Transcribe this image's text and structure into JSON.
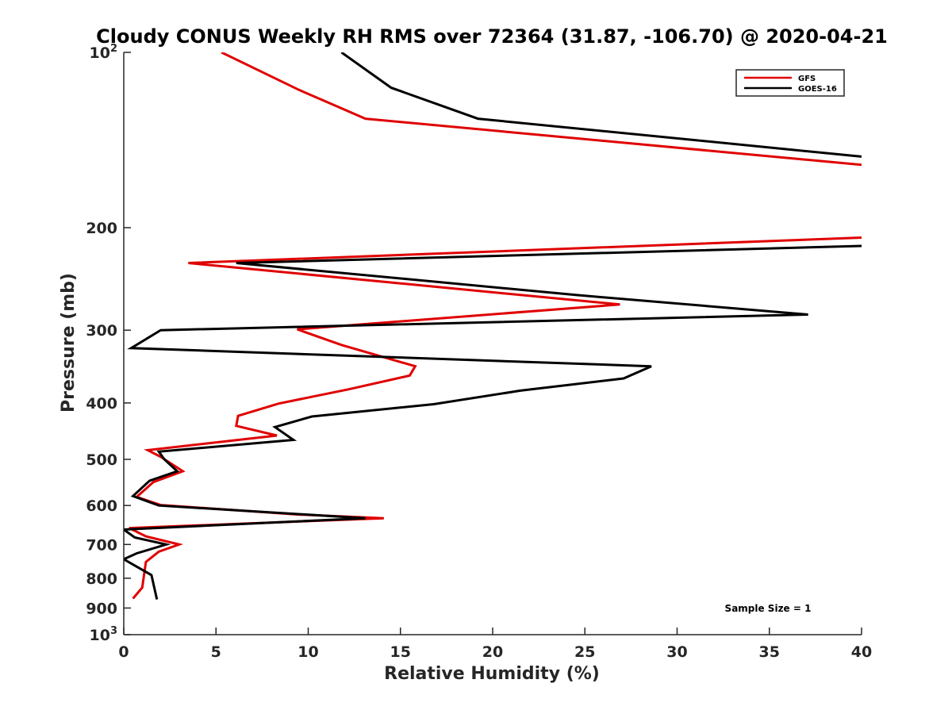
{
  "chart_data": {
    "type": "line",
    "title": "Cloudy CONUS Weekly RH RMS over 72364 (31.87, -106.70) @ 2020-04-21",
    "xlabel": "Relative Humidity (%)",
    "ylabel": "Pressure (mb)",
    "xlim": [
      0,
      40
    ],
    "ylim": [
      100,
      1000
    ],
    "y_scale": "log",
    "y_reversed": true,
    "grid": false,
    "legend_position": "top-right",
    "x_ticks": [
      0,
      5,
      10,
      15,
      20,
      25,
      30,
      35,
      40
    ],
    "y_ticks": [
      {
        "value": 100,
        "label": "10",
        "sup": "2"
      },
      {
        "value": 200,
        "label": "200",
        "sup": ""
      },
      {
        "value": 300,
        "label": "300",
        "sup": ""
      },
      {
        "value": 400,
        "label": "400",
        "sup": ""
      },
      {
        "value": 500,
        "label": "500",
        "sup": ""
      },
      {
        "value": 600,
        "label": "600",
        "sup": ""
      },
      {
        "value": 700,
        "label": "700",
        "sup": ""
      },
      {
        "value": 800,
        "label": "800",
        "sup": ""
      },
      {
        "value": 900,
        "label": "900",
        "sup": ""
      },
      {
        "value": 1000,
        "label": "10",
        "sup": "3"
      }
    ],
    "series": [
      {
        "name": "GFS",
        "color": "#e00000",
        "points": [
          [
            5.3,
            100
          ],
          [
            9.5,
            116
          ],
          [
            13.1,
            130
          ],
          [
            40,
            156
          ],
          [
            null,
            null
          ],
          [
            40,
            208
          ],
          [
            3.5,
            230
          ],
          [
            26.9,
            271
          ],
          [
            9.4,
            299
          ],
          [
            11.8,
            318
          ],
          [
            15.8,
            346
          ],
          [
            15.5,
            359
          ],
          [
            12.2,
            379
          ],
          [
            8.4,
            401
          ],
          [
            6.2,
            421
          ],
          [
            6.1,
            438
          ],
          [
            8.3,
            455
          ],
          [
            1.3,
            482
          ],
          [
            2.0,
            495
          ],
          [
            3.2,
            524
          ],
          [
            1.6,
            547
          ],
          [
            0.7,
            580
          ],
          [
            2.0,
            599
          ],
          [
            9.5,
            622
          ],
          [
            14.1,
            631
          ],
          [
            0.3,
            656
          ],
          [
            1.2,
            678
          ],
          [
            3.0,
            700
          ],
          [
            1.9,
            720
          ],
          [
            1.2,
            750
          ],
          [
            1.0,
            830
          ],
          [
            0.5,
            867
          ]
        ]
      },
      {
        "name": "GOES-16",
        "color": "#000000",
        "points": [
          [
            11.8,
            100
          ],
          [
            14.5,
            115
          ],
          [
            19.2,
            130
          ],
          [
            40,
            151
          ],
          [
            null,
            null
          ],
          [
            40,
            215
          ],
          [
            6.1,
            230
          ],
          [
            24.5,
            261
          ],
          [
            37.1,
            282
          ],
          [
            2.0,
            300
          ],
          [
            0.4,
            322
          ],
          [
            28.6,
            346
          ],
          [
            27.1,
            363
          ],
          [
            21.5,
            381
          ],
          [
            16.8,
            402
          ],
          [
            10.2,
            422
          ],
          [
            8.2,
            440
          ],
          [
            9.2,
            463
          ],
          [
            1.9,
            485
          ],
          [
            2.2,
            500
          ],
          [
            2.9,
            524
          ],
          [
            1.4,
            544
          ],
          [
            0.5,
            578
          ],
          [
            1.9,
            600
          ],
          [
            13.1,
            631
          ],
          [
            0.0,
            660
          ],
          [
            0.6,
            681
          ],
          [
            2.3,
            700
          ],
          [
            0.7,
            725
          ],
          [
            0.0,
            742
          ],
          [
            1.5,
            790
          ],
          [
            1.8,
            870
          ]
        ]
      }
    ],
    "annotation": "Sample Size = 1"
  }
}
